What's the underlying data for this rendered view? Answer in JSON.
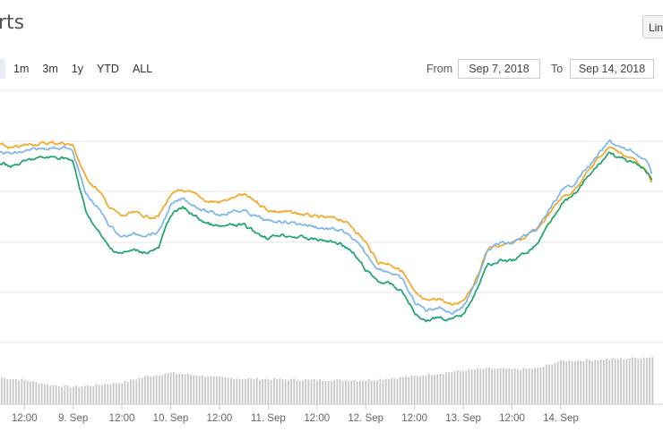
{
  "header": {
    "title": "rts",
    "chart_type_button": "Lin"
  },
  "range_selector": {
    "buttons": [
      "",
      "1m",
      "3m",
      "1y",
      "YTD",
      "ALL"
    ],
    "active_index": 0
  },
  "date_range": {
    "from_label": "From",
    "from_value": "Sep 7, 2018",
    "to_label": "To",
    "to_value": "Sep 14, 2018"
  },
  "colors": {
    "orange": "#f5a623",
    "blue": "#7cb5ec",
    "green": "#1aa36b",
    "volume": "#c8c8c8",
    "grid": "#e6e6e6"
  },
  "chart_data": {
    "type": "line",
    "x_start": "2018-09-08T06:00",
    "x_end": "2018-09-14T22:30",
    "x_ticks": [
      "12:00",
      "9. Sep",
      "12:00",
      "10. Sep",
      "12:00",
      "11. Sep",
      "12:00",
      "12. Sep",
      "12:00",
      "13. Sep",
      "12:00",
      "14. Sep"
    ],
    "series": [
      {
        "color": "orange",
        "points": [
          [
            "2018-09-08T06:00",
            162
          ],
          [
            "2018-09-08T09:00",
            166
          ],
          [
            "2018-09-08T14:00",
            161
          ],
          [
            "2018-09-08T18:00",
            160
          ],
          [
            "2018-09-08T22:00",
            160
          ],
          [
            "2018-09-09T00:00",
            163
          ],
          [
            "2018-09-09T03:00",
            198
          ],
          [
            "2018-09-09T06:00",
            212
          ],
          [
            "2018-09-09T09:00",
            232
          ],
          [
            "2018-09-09T12:00",
            242
          ],
          [
            "2018-09-09T15:00",
            238
          ],
          [
            "2018-09-09T18:00",
            242
          ],
          [
            "2018-09-09T21:00",
            242
          ],
          [
            "2018-09-10T00:00",
            218
          ],
          [
            "2018-09-10T03:00",
            213
          ],
          [
            "2018-09-10T06:00",
            218
          ],
          [
            "2018-09-10T09:00",
            225
          ],
          [
            "2018-09-10T12:00",
            226
          ],
          [
            "2018-09-10T15:00",
            222
          ],
          [
            "2018-09-10T18:00",
            218
          ],
          [
            "2018-09-10T21:00",
            225
          ],
          [
            "2018-09-11T00:00",
            235
          ],
          [
            "2018-09-11T03:00",
            237
          ],
          [
            "2018-09-11T06:00",
            238
          ],
          [
            "2018-09-11T09:00",
            240
          ],
          [
            "2018-09-11T12:00",
            243
          ],
          [
            "2018-09-11T15:00",
            244
          ],
          [
            "2018-09-11T18:00",
            245
          ],
          [
            "2018-09-11T21:00",
            255
          ],
          [
            "2018-09-12T00:00",
            271
          ],
          [
            "2018-09-12T03:00",
            293
          ],
          [
            "2018-09-12T06:00",
            295
          ],
          [
            "2018-09-12T09:00",
            303
          ],
          [
            "2018-09-12T12:00",
            328
          ],
          [
            "2018-09-12T15:00",
            338
          ],
          [
            "2018-09-12T18:00",
            333
          ],
          [
            "2018-09-12T21:00",
            342
          ],
          [
            "2018-09-13T00:00",
            335
          ],
          [
            "2018-09-13T03:00",
            314
          ],
          [
            "2018-09-13T06:00",
            278
          ],
          [
            "2018-09-13T09:00",
            274
          ],
          [
            "2018-09-13T12:00",
            272
          ],
          [
            "2018-09-13T15:00",
            266
          ],
          [
            "2018-09-13T18:00",
            258
          ],
          [
            "2018-09-13T21:00",
            240
          ],
          [
            "2018-09-14T00:00",
            222
          ],
          [
            "2018-09-14T03:00",
            214
          ],
          [
            "2018-09-14T06:00",
            195
          ],
          [
            "2018-09-14T09:00",
            179
          ],
          [
            "2018-09-14T12:00",
            163
          ],
          [
            "2018-09-14T15:00",
            172
          ],
          [
            "2018-09-14T18:00",
            178
          ],
          [
            "2018-09-14T21:00",
            190
          ],
          [
            "2018-09-14T22:30",
            207
          ]
        ]
      },
      {
        "color": "blue",
        "points": [
          [
            "2018-09-08T06:00",
            170
          ],
          [
            "2018-09-08T09:00",
            172
          ],
          [
            "2018-09-08T14:00",
            168
          ],
          [
            "2018-09-08T18:00",
            165
          ],
          [
            "2018-09-08T22:00",
            165
          ],
          [
            "2018-09-09T00:00",
            170
          ],
          [
            "2018-09-09T03:00",
            216
          ],
          [
            "2018-09-09T06:00",
            232
          ],
          [
            "2018-09-09T09:00",
            252
          ],
          [
            "2018-09-09T12:00",
            265
          ],
          [
            "2018-09-09T15:00",
            262
          ],
          [
            "2018-09-09T18:00",
            262
          ],
          [
            "2018-09-09T21:00",
            260
          ],
          [
            "2018-09-10T00:00",
            230
          ],
          [
            "2018-09-10T03:00",
            222
          ],
          [
            "2018-09-10T06:00",
            230
          ],
          [
            "2018-09-10T09:00",
            237
          ],
          [
            "2018-09-10T12:00",
            240
          ],
          [
            "2018-09-10T15:00",
            236
          ],
          [
            "2018-09-10T18:00",
            236
          ],
          [
            "2018-09-10T21:00",
            242
          ],
          [
            "2018-09-11T00:00",
            248
          ],
          [
            "2018-09-11T03:00",
            247
          ],
          [
            "2018-09-11T06:00",
            249
          ],
          [
            "2018-09-11T09:00",
            251
          ],
          [
            "2018-09-11T12:00",
            254
          ],
          [
            "2018-09-11T15:00",
            256
          ],
          [
            "2018-09-11T18:00",
            258
          ],
          [
            "2018-09-11T21:00",
            268
          ],
          [
            "2018-09-12T00:00",
            284
          ],
          [
            "2018-09-12T03:00",
            300
          ],
          [
            "2018-09-12T06:00",
            304
          ],
          [
            "2018-09-12T09:00",
            313
          ],
          [
            "2018-09-12T12:00",
            338
          ],
          [
            "2018-09-12T15:00",
            347
          ],
          [
            "2018-09-12T18:00",
            343
          ],
          [
            "2018-09-12T21:00",
            350
          ],
          [
            "2018-09-13T00:00",
            343
          ],
          [
            "2018-09-13T03:00",
            318
          ],
          [
            "2018-09-13T06:00",
            278
          ],
          [
            "2018-09-13T09:00",
            272
          ],
          [
            "2018-09-13T12:00",
            272
          ],
          [
            "2018-09-13T15:00",
            264
          ],
          [
            "2018-09-13T18:00",
            258
          ],
          [
            "2018-09-13T21:00",
            236
          ],
          [
            "2018-09-14T00:00",
            215
          ],
          [
            "2018-09-14T03:00",
            206
          ],
          [
            "2018-09-14T06:00",
            190
          ],
          [
            "2018-09-14T09:00",
            175
          ],
          [
            "2018-09-14T12:00",
            158
          ],
          [
            "2018-09-14T15:00",
            166
          ],
          [
            "2018-09-14T18:00",
            170
          ],
          [
            "2018-09-14T21:00",
            180
          ],
          [
            "2018-09-14T22:30",
            196
          ]
        ]
      },
      {
        "color": "green",
        "points": [
          [
            "2018-09-08T06:00",
            182
          ],
          [
            "2018-09-08T09:00",
            186
          ],
          [
            "2018-09-08T14:00",
            178
          ],
          [
            "2018-09-08T18:00",
            176
          ],
          [
            "2018-09-08T22:00",
            176
          ],
          [
            "2018-09-09T00:00",
            182
          ],
          [
            "2018-09-09T03:00",
            235
          ],
          [
            "2018-09-09T06:00",
            258
          ],
          [
            "2018-09-09T09:00",
            278
          ],
          [
            "2018-09-09T12:00",
            283
          ],
          [
            "2018-09-09T15:00",
            280
          ],
          [
            "2018-09-09T18:00",
            282
          ],
          [
            "2018-09-09T21:00",
            278
          ],
          [
            "2018-09-10T00:00",
            240
          ],
          [
            "2018-09-10T03:00",
            232
          ],
          [
            "2018-09-10T06:00",
            242
          ],
          [
            "2018-09-10T09:00",
            250
          ],
          [
            "2018-09-10T12:00",
            254
          ],
          [
            "2018-09-10T15:00",
            252
          ],
          [
            "2018-09-10T18:00",
            252
          ],
          [
            "2018-09-10T21:00",
            260
          ],
          [
            "2018-09-11T00:00",
            266
          ],
          [
            "2018-09-11T03:00",
            262
          ],
          [
            "2018-09-11T06:00",
            264
          ],
          [
            "2018-09-11T09:00",
            266
          ],
          [
            "2018-09-11T12:00",
            268
          ],
          [
            "2018-09-11T15:00",
            270
          ],
          [
            "2018-09-11T18:00",
            272
          ],
          [
            "2018-09-11T21:00",
            284
          ],
          [
            "2018-09-12T00:00",
            302
          ],
          [
            "2018-09-12T03:00",
            314
          ],
          [
            "2018-09-12T06:00",
            318
          ],
          [
            "2018-09-12T09:00",
            326
          ],
          [
            "2018-09-12T12:00",
            350
          ],
          [
            "2018-09-12T15:00",
            358
          ],
          [
            "2018-09-12T18:00",
            354
          ],
          [
            "2018-09-12T21:00",
            358
          ],
          [
            "2018-09-13T00:00",
            352
          ],
          [
            "2018-09-13T03:00",
            326
          ],
          [
            "2018-09-13T06:00",
            296
          ],
          [
            "2018-09-13T09:00",
            292
          ],
          [
            "2018-09-13T12:00",
            292
          ],
          [
            "2018-09-13T15:00",
            284
          ],
          [
            "2018-09-13T18:00",
            274
          ],
          [
            "2018-09-13T21:00",
            250
          ],
          [
            "2018-09-14T00:00",
            228
          ],
          [
            "2018-09-14T03:00",
            220
          ],
          [
            "2018-09-14T06:00",
            202
          ],
          [
            "2018-09-14T09:00",
            186
          ],
          [
            "2018-09-14T12:00",
            170
          ],
          [
            "2018-09-14T15:00",
            178
          ],
          [
            "2018-09-14T18:00",
            183
          ],
          [
            "2018-09-14T21:00",
            192
          ],
          [
            "2018-09-14T22:30",
            202
          ]
        ]
      }
    ],
    "volume": [
      [
        "2018-09-08T06:00",
        0.55
      ],
      [
        "2018-09-08T12:00",
        0.5
      ],
      [
        "2018-09-08T18:00",
        0.4
      ],
      [
        "2018-09-09T00:00",
        0.36
      ],
      [
        "2018-09-09T06:00",
        0.4
      ],
      [
        "2018-09-09T12:00",
        0.45
      ],
      [
        "2018-09-09T18:00",
        0.58
      ],
      [
        "2018-09-10T00:00",
        0.65
      ],
      [
        "2018-09-10T06:00",
        0.6
      ],
      [
        "2018-09-10T12:00",
        0.55
      ],
      [
        "2018-09-10T18:00",
        0.53
      ],
      [
        "2018-09-11T00:00",
        0.52
      ],
      [
        "2018-09-11T12:00",
        0.5
      ],
      [
        "2018-09-12T00:00",
        0.5
      ],
      [
        "2018-09-12T12:00",
        0.58
      ],
      [
        "2018-09-13T00:00",
        0.7
      ],
      [
        "2018-09-13T06:00",
        0.74
      ],
      [
        "2018-09-13T12:00",
        0.72
      ],
      [
        "2018-09-13T18:00",
        0.74
      ],
      [
        "2018-09-14T00:00",
        0.9
      ],
      [
        "2018-09-14T12:00",
        0.93
      ],
      [
        "2018-09-14T22:30",
        0.98
      ]
    ]
  }
}
